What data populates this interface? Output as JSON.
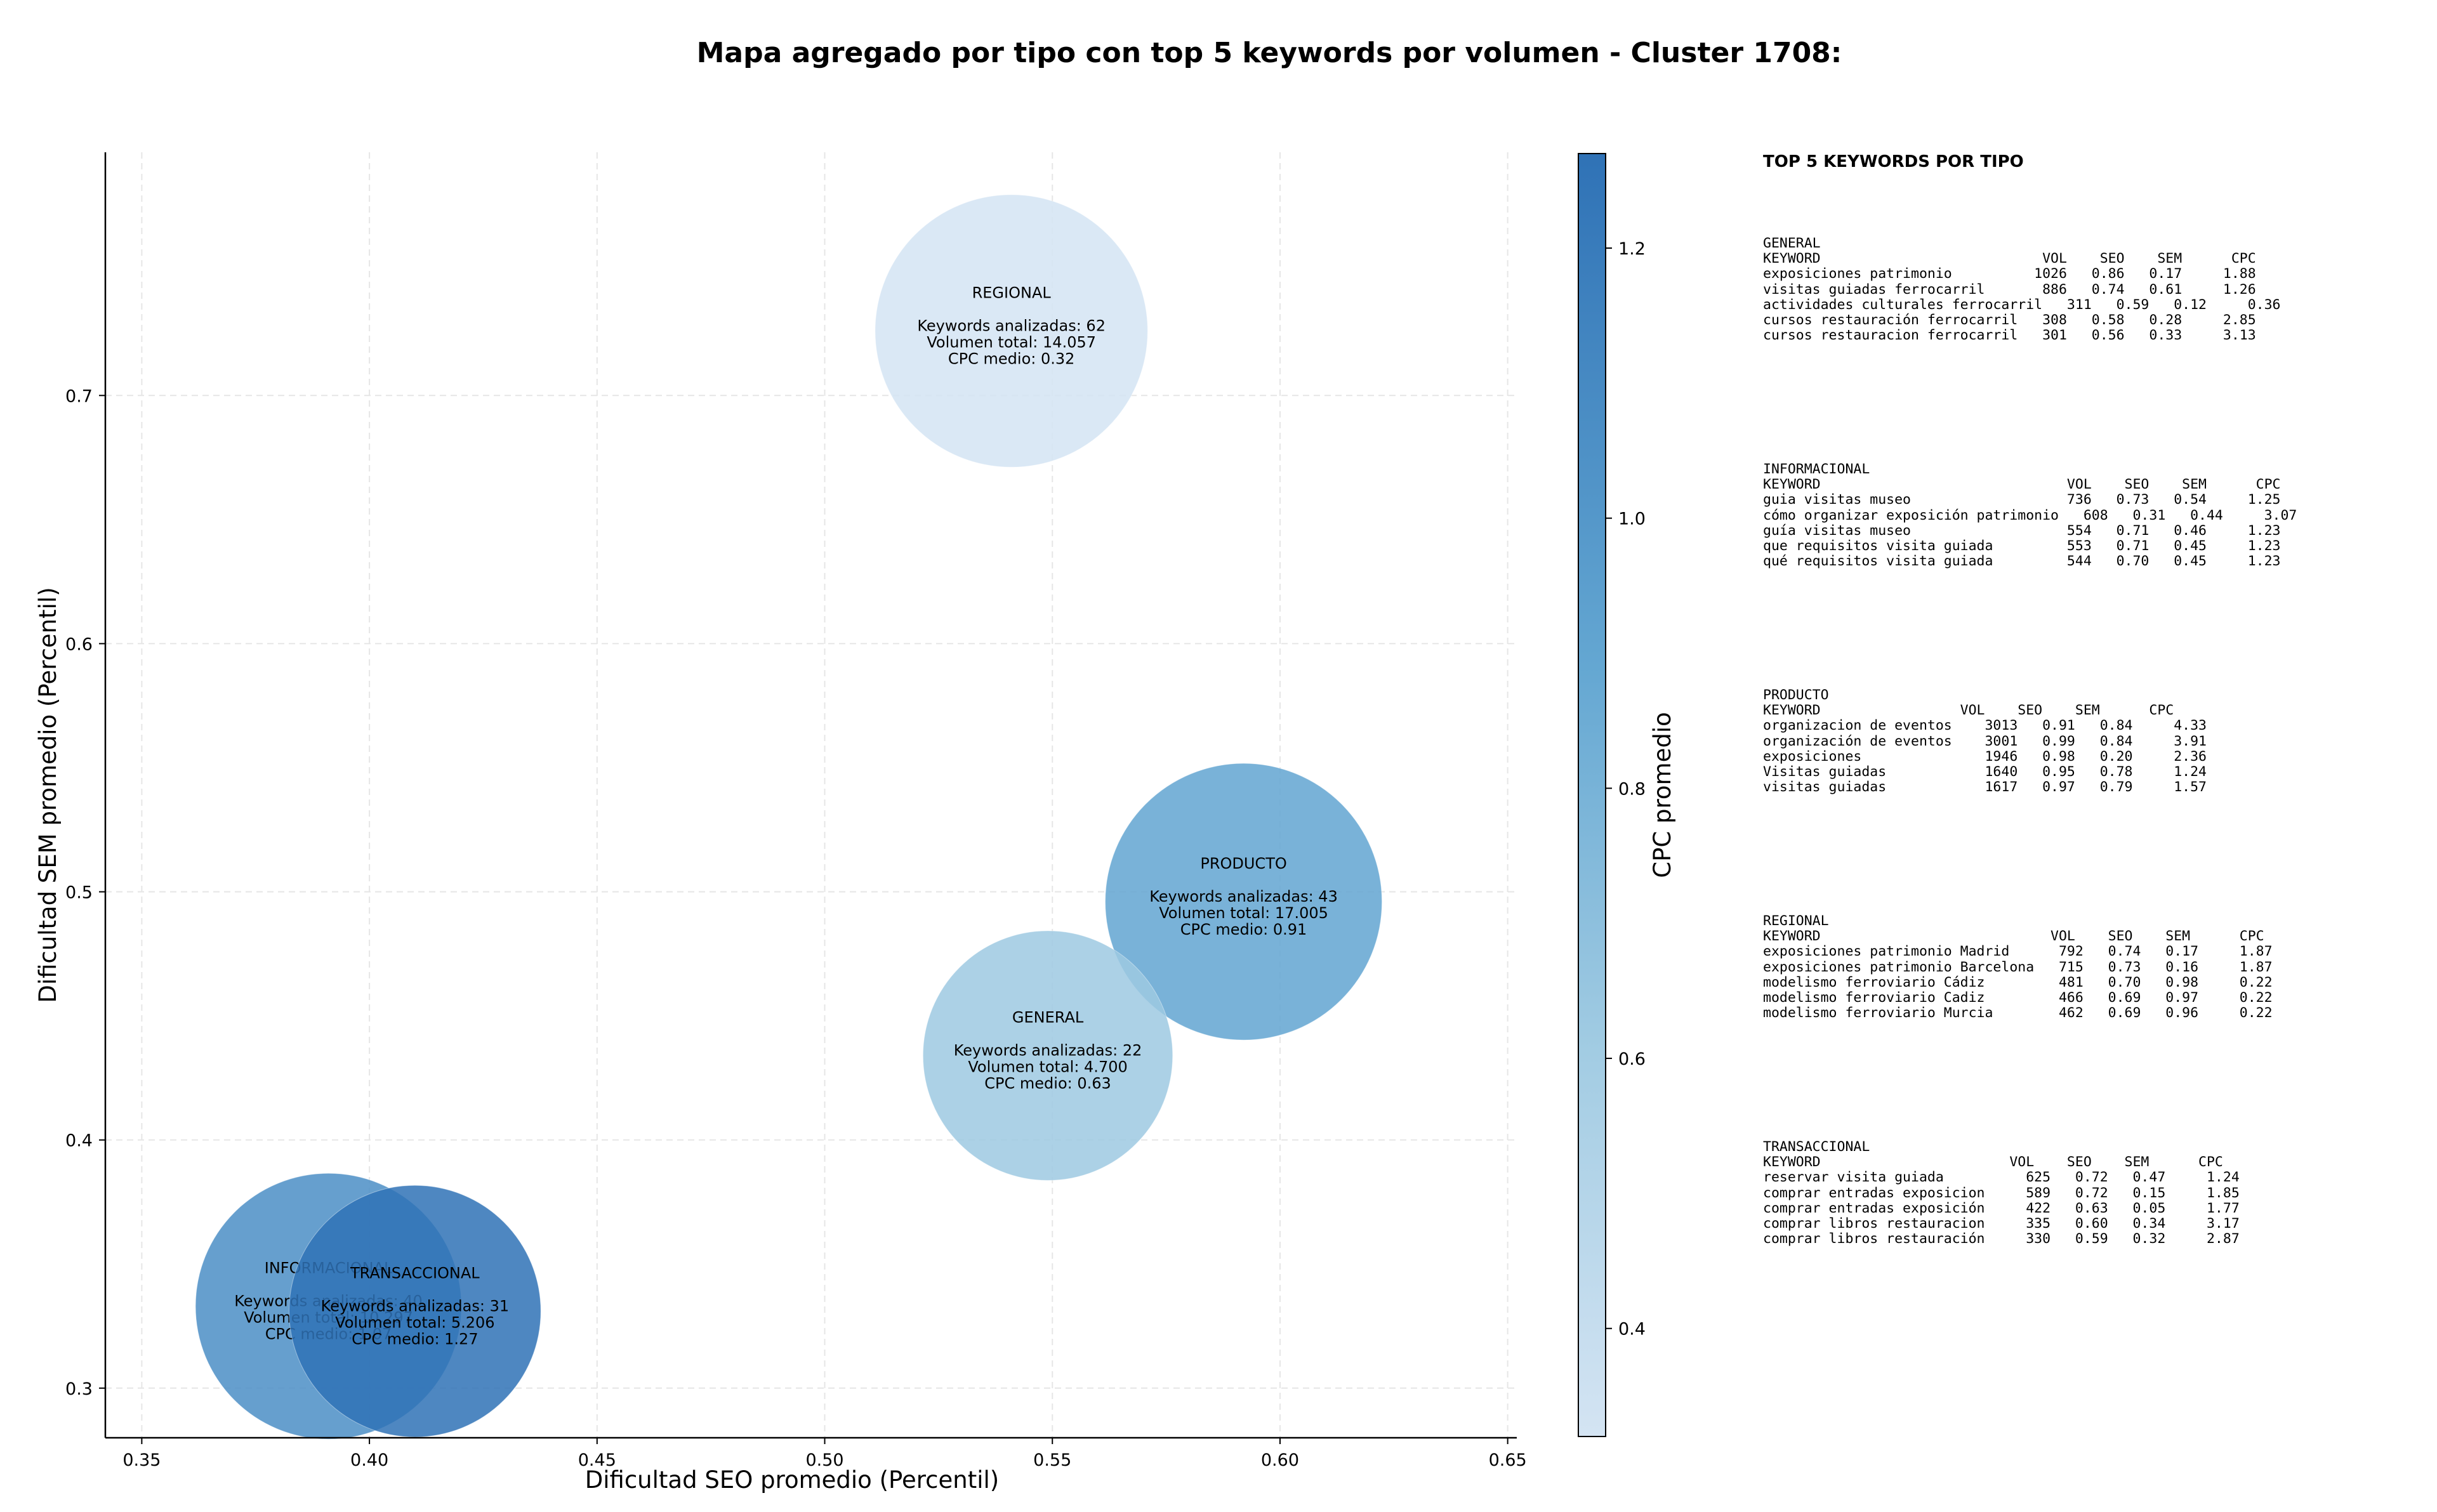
{
  "chart_data": {
    "type": "scatter",
    "title": "Mapa agregado por tipo con top 5 keywords por volumen - Cluster 1708:",
    "xlabel": "Dificultad SEO promedio (Percentil)",
    "ylabel": "Dificultad SEM promedio (Percentil)",
    "xlim": [
      0.342,
      0.652
    ],
    "ylim": [
      0.28,
      0.798
    ],
    "xticks": [
      "0.35",
      "0.40",
      "0.45",
      "0.50",
      "0.55",
      "0.60",
      "0.65"
    ],
    "yticks": [
      "0.3",
      "0.4",
      "0.5",
      "0.6",
      "0.7"
    ],
    "grid": true,
    "colorbar": {
      "label": "CPC promedio",
      "range": [
        0.32,
        1.27
      ],
      "ticks": [
        "0.4",
        "0.6",
        "0.8",
        "1.0",
        "1.2"
      ],
      "color_low": "#d4e4f3",
      "color_high": "#2f72b6"
    },
    "points": [
      {
        "name": "REGIONAL",
        "x": 0.541,
        "y": 0.726,
        "cpc": 0.32,
        "size_volume": 14057,
        "lines": [
          "Keywords analizadas: 62",
          "Volumen total: 14.057",
          "CPC medio: 0.32"
        ]
      },
      {
        "name": "PRODUCTO",
        "x": 0.592,
        "y": 0.496,
        "cpc": 0.91,
        "size_volume": 17005,
        "lines": [
          "Keywords analizadas: 43",
          "Volumen total: 17.005",
          "CPC medio: 0.91"
        ]
      },
      {
        "name": "GENERAL",
        "x": 0.549,
        "y": 0.434,
        "cpc": 0.63,
        "size_volume": 4700,
        "lines": [
          "Keywords analizadas: 22",
          "Volumen total: 4.700",
          "CPC medio: 0.63"
        ]
      },
      {
        "name": "INFORMACIONAL",
        "x": 0.391,
        "y": 0.333,
        "cpc": 1.07,
        "size_volume": 10297,
        "lines": [
          "Keywords analizadas: 40",
          "Volumen total: 10.297",
          "CPC medio: 1.07"
        ]
      },
      {
        "name": "TRANSACCIONAL",
        "x": 0.41,
        "y": 0.331,
        "cpc": 1.27,
        "size_volume": 5206,
        "lines": [
          "Keywords analizadas: 31",
          "Volumen total: 5.206",
          "CPC medio: 1.27"
        ]
      }
    ]
  },
  "panel": {
    "title": "TOP 5 KEYWORDS POR TIPO",
    "blocks": [
      {
        "name": "GENERAL",
        "header": "KEYWORD                           VOL    SEO    SEM      CPC",
        "rows": [
          "exposiciones patrimonio          1026   0.86   0.17     1.88",
          "visitas guiadas ferrocarril       886   0.74   0.61     1.26",
          "actividades culturales ferrocarril   311   0.59   0.12     0.36",
          "cursos restauración ferrocarril   308   0.58   0.28     2.85",
          "cursos restauracion ferrocarril   301   0.56   0.33     3.13"
        ]
      },
      {
        "name": "INFORMACIONAL",
        "header": "KEYWORD                              VOL    SEO    SEM      CPC",
        "rows": [
          "guia visitas museo                   736   0.73   0.54     1.25",
          "cómo organizar exposición patrimonio   608   0.31   0.44     3.07",
          "guía visitas museo                   554   0.71   0.46     1.23",
          "que requisitos visita guiada         553   0.71   0.45     1.23",
          "qué requisitos visita guiada         544   0.70   0.45     1.23"
        ]
      },
      {
        "name": "PRODUCTO",
        "header": "KEYWORD                 VOL    SEO    SEM      CPC",
        "rows": [
          "organizacion de eventos    3013   0.91   0.84     4.33",
          "organización de eventos    3001   0.99   0.84     3.91",
          "exposiciones               1946   0.98   0.20     2.36",
          "Visitas guiadas            1640   0.95   0.78     1.24",
          "visitas guiadas            1617   0.97   0.79     1.57"
        ]
      },
      {
        "name": "REGIONAL",
        "header": "KEYWORD                            VOL    SEO    SEM      CPC",
        "rows": [
          "exposiciones patrimonio Madrid      792   0.74   0.17     1.87",
          "exposiciones patrimonio Barcelona   715   0.73   0.16     1.87",
          "modelismo ferroviario Cádiz         481   0.70   0.98     0.22",
          "modelismo ferroviario Cadiz         466   0.69   0.97     0.22",
          "modelismo ferroviario Murcia        462   0.69   0.96     0.22"
        ]
      },
      {
        "name": "TRANSACCIONAL",
        "header": "KEYWORD                       VOL    SEO    SEM      CPC",
        "rows": [
          "reservar visita guiada          625   0.72   0.47     1.24",
          "comprar entradas exposicion     589   0.72   0.15     1.85",
          "comprar entradas exposición     422   0.63   0.05     1.77",
          "comprar libros restauracion     335   0.60   0.34     3.17",
          "comprar libros restauración     330   0.59   0.32     2.87"
        ]
      }
    ]
  }
}
